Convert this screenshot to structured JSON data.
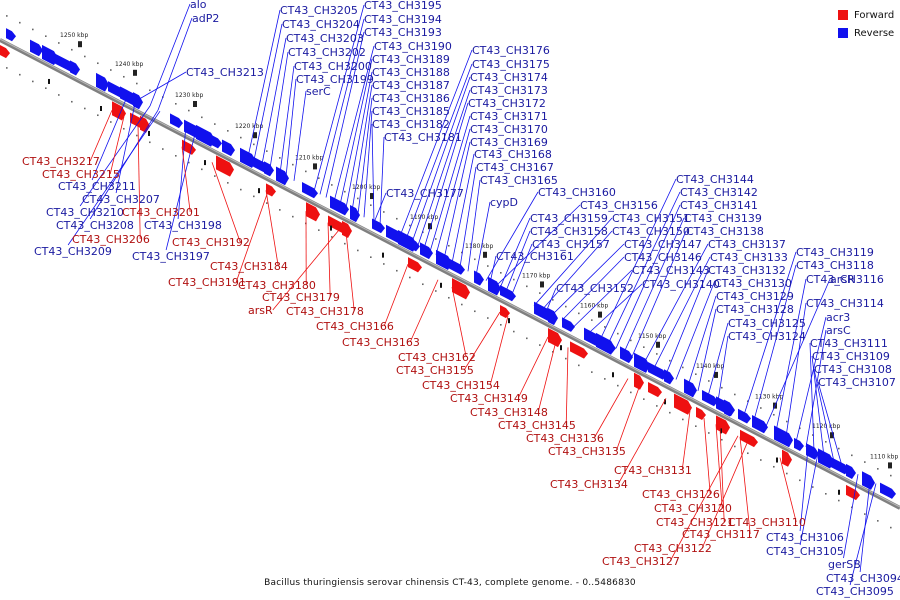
{
  "title": "Bacillus thuringiensis serovar chinensis CT-43, complete genome. - 0..5486830",
  "legend": [
    {
      "label": "Forward",
      "color": "#ee1111"
    },
    {
      "label": "Reverse",
      "color": "#1111ee"
    }
  ],
  "colors": {
    "forward": "#ee1111",
    "reverse": "#1111ee",
    "axis": "#808080",
    "ticks": "#333333"
  },
  "ticks": [
    "1250 kbp",
    "1240 kbp",
    "1230 kbp",
    "1220 kbp",
    "1210 kbp",
    "1200 kbp",
    "1190 kbp",
    "1180 kbp",
    "1170 kbp",
    "1160 kbp",
    "1150 kbp",
    "1140 kbp",
    "1130 kbp",
    "1120 kbp",
    "1110 kbp"
  ],
  "reverse_labels": [
    "alo",
    "adP2",
    "CT43_CH3205",
    "CT43_CH3204",
    "CT43_CH3203",
    "CT43_CH3202",
    "CT43_CH3200",
    "CT43_CH3199",
    "serC",
    "CT43_CH3213",
    "CT43_CH3195",
    "CT43_CH3194",
    "CT43_CH3193",
    "CT43_CH3190",
    "CT43_CH3189",
    "CT43_CH3188",
    "CT43_CH3187",
    "CT43_CH3186",
    "CT43_CH3185",
    "CT43_CH3182",
    "CT43_CH3181",
    "CT43_CH3176",
    "CT43_CH3175",
    "CT43_CH3174",
    "CT43_CH3173",
    "CT43_CH3172",
    "CT43_CH3171",
    "CT43_CH3170",
    "CT43_CH3169",
    "CT43_CH3168",
    "CT43_CH3167",
    "CT43_CH3165",
    "CT43_CH3177",
    "cypD",
    "CT43_CH3160",
    "CT43_CH3156",
    "CT43_CH3159",
    "CT43_CH3158",
    "CT43_CH3157",
    "CT43_CH3161",
    "CT43_CH3151",
    "CT43_CH3150",
    "CT43_CH3147",
    "CT43_CH3146",
    "CT43_CH3143",
    "CT43_CH3140",
    "CT43_CH3152",
    "CT43_CH3144",
    "CT43_CH3142",
    "CT43_CH3141",
    "CT43_CH3139",
    "CT43_CH3138",
    "CT43_CH3137",
    "CT43_CH3133",
    "CT43_CH3132",
    "CT43_CH3130",
    "CT43_CH3129",
    "CT43_CH3128",
    "CT43_CH3125",
    "CT43_CH3124",
    "CT43_CH3119",
    "CT43_CH3118",
    "arsR",
    "CT43_CH3116",
    "CT43_CH3114",
    "acr3",
    "arsC",
    "CT43_CH3111",
    "CT43_CH3109",
    "CT43_CH3108",
    "CT43_CH3107",
    "CT43_CH3211",
    "CT43_CH3207",
    "CT43_CH3210",
    "CT43_CH3208",
    "CT43_CH3209",
    "CT43_CH3198",
    "CT43_CH3197",
    "CT43_CH3106",
    "CT43_CH3105",
    "gerSB",
    "CT43_CH3094",
    "CT43_CH3095"
  ],
  "forward_labels": [
    "CT43_CH3217",
    "CT43_CH3215",
    "CT43_CH3201",
    "CT43_CH3206",
    "CT43_CH3192",
    "CT43_CH3184",
    "CT43_CH3191",
    "CT43_CH3180",
    "CT43_CH3179",
    "arsR",
    "CT43_CH3178",
    "CT43_CH3166",
    "CT43_CH3163",
    "CT43_CH3162",
    "CT43_CH3155",
    "CT43_CH3154",
    "CT43_CH3149",
    "CT43_CH3148",
    "CT43_CH3145",
    "CT43_CH3136",
    "CT43_CH3135",
    "CT43_CH3134",
    "CT43_CH3131",
    "CT43_CH3126",
    "CT43_CH3120",
    "CT43_CH3121",
    "CT43_CH3117",
    "CT43_CH3110",
    "CT43_CH3122",
    "CT43_CH3127"
  ]
}
